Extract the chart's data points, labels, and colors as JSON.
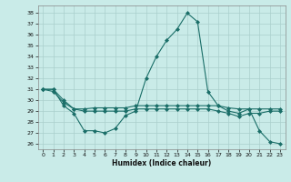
{
  "xlabel": "Humidex (Indice chaleur)",
  "xlim": [
    -0.5,
    23.5
  ],
  "ylim": [
    25.5,
    38.7
  ],
  "yticks": [
    26,
    27,
    28,
    29,
    30,
    31,
    32,
    33,
    34,
    35,
    36,
    37,
    38
  ],
  "xticks": [
    0,
    1,
    2,
    3,
    4,
    5,
    6,
    7,
    8,
    9,
    10,
    11,
    12,
    13,
    14,
    15,
    16,
    17,
    18,
    19,
    20,
    21,
    22,
    23
  ],
  "background_color": "#c9ebe8",
  "grid_color": "#aacfcc",
  "line_color": "#1a6e68",
  "line1_max": [
    31.0,
    31.0,
    29.5,
    28.8,
    27.2,
    27.2,
    27.0,
    27.4,
    28.6,
    29.0,
    32.0,
    34.0,
    35.5,
    36.5,
    38.0,
    37.2,
    30.8,
    29.5,
    29.0,
    28.8,
    29.2,
    27.2,
    26.2,
    26.0
  ],
  "line2_mean": [
    31.0,
    31.0,
    30.0,
    29.2,
    29.2,
    29.3,
    29.3,
    29.3,
    29.3,
    29.5,
    29.5,
    29.5,
    29.5,
    29.5,
    29.5,
    29.5,
    29.5,
    29.5,
    29.3,
    29.2,
    29.2,
    29.2,
    29.2,
    29.2
  ],
  "line3_min": [
    31.0,
    30.8,
    29.8,
    29.2,
    29.0,
    29.0,
    29.0,
    29.0,
    29.0,
    29.2,
    29.2,
    29.2,
    29.2,
    29.2,
    29.2,
    29.2,
    29.2,
    29.0,
    28.8,
    28.5,
    28.8,
    28.8,
    29.0,
    29.0
  ]
}
